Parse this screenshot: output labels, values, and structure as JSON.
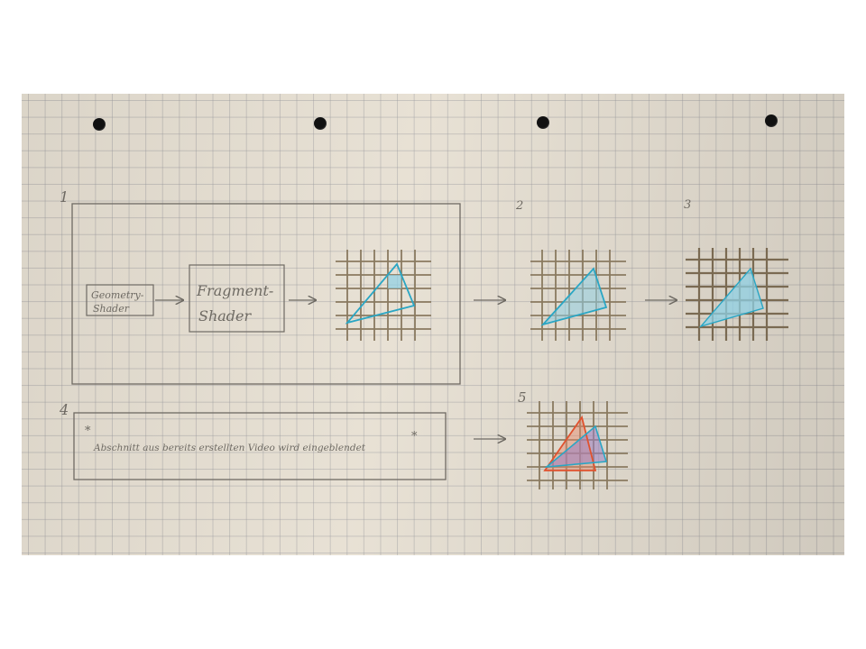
{
  "steps": {
    "s1": "1",
    "s2": "2",
    "s3": "3",
    "s4": "4",
    "s5": "5"
  },
  "boxes": {
    "geometry_shader": [
      "Geometry-",
      "Shader"
    ],
    "fragment_shader": [
      "Fragment-",
      "Shader"
    ]
  },
  "note": {
    "text": "Abschnitt aus bereits erstellten Video wird eingeblendet",
    "asterisk_left": "*",
    "asterisk_right": "*"
  },
  "colors": {
    "pencil": "#6e6a63",
    "cyan": "#2aa6c4",
    "cyan_fill": "#8fd0e4",
    "red": "#e0522e",
    "purple_fill": "#9b7fc2"
  }
}
